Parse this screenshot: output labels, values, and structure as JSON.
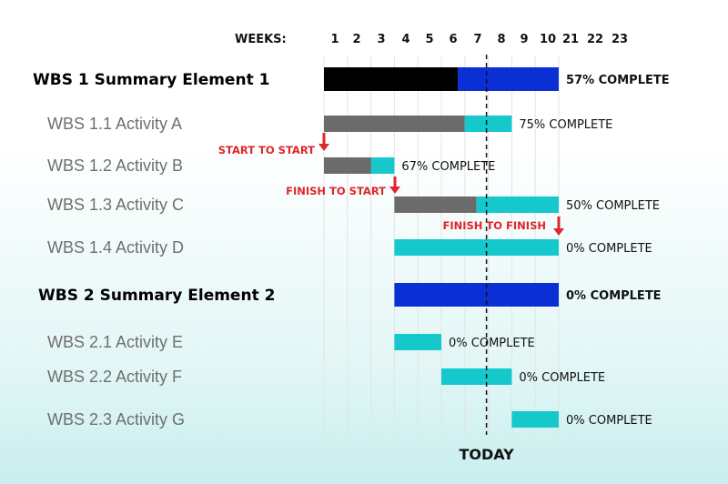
{
  "colors": {
    "summary_done": "#000000",
    "summary_remaining": "#0a2fd4",
    "summary_remaining_2": "#0a2fd4",
    "activity_done": "#6b6b6b",
    "activity_remaining": "#14c8cc",
    "dependency": "#e0262b",
    "today_line": "#111111",
    "gridline": "#e4e4e4"
  },
  "chart_data": {
    "type": "gantt",
    "header_label": "WEEKS:",
    "weeks": [
      "1",
      "2",
      "3",
      "4",
      "5",
      "6",
      "7",
      "8",
      "9",
      "10",
      "21",
      "22",
      "23"
    ],
    "today_week": 8,
    "today_label": "TODAY",
    "tasks": [
      {
        "label": "WBS 1 Summary Element 1",
        "summary": true,
        "start": 1,
        "end": 10,
        "percent_complete": 57,
        "percent_label": "57% COMPLETE"
      },
      {
        "label": "WBS 1.1 Activity A",
        "summary": false,
        "start": 1,
        "end": 8,
        "percent_complete": 75,
        "percent_label": "75% COMPLETE"
      },
      {
        "label": "WBS 1.2 Activity B",
        "summary": false,
        "start": 1,
        "end": 3,
        "percent_complete": 67,
        "percent_label": "67% COMPLETE"
      },
      {
        "label": "WBS 1.3 Activity C",
        "summary": false,
        "start": 4,
        "end": 10,
        "percent_complete": 50,
        "percent_label": "50% COMPLETE"
      },
      {
        "label": "WBS 1.4 Activity D",
        "summary": false,
        "start": 4,
        "end": 10,
        "percent_complete": 0,
        "percent_label": "0% COMPLETE"
      },
      {
        "label": "WBS 2 Summary Element 2",
        "summary": true,
        "start": 4,
        "end": 10,
        "percent_complete": 0,
        "percent_label": "0% COMPLETE"
      },
      {
        "label": "WBS 2.1 Activity E",
        "summary": false,
        "start": 4,
        "end": 5,
        "percent_complete": 0,
        "percent_label": "0% COMPLETE"
      },
      {
        "label": "WBS 2.2 Activity F",
        "summary": false,
        "start": 6,
        "end": 8,
        "percent_complete": 0,
        "percent_label": "0% COMPLETE"
      },
      {
        "label": "WBS 2.3 Activity G",
        "summary": false,
        "start": 9,
        "end": 10,
        "percent_complete": 0,
        "percent_label": "0% COMPLETE"
      }
    ],
    "dependencies": [
      {
        "type": "START TO START",
        "label": "START TO START",
        "from_task": 1,
        "to_task": 2
      },
      {
        "type": "FINISH TO START",
        "label": "FINISH TO START",
        "from_task": 2,
        "to_task": 3
      },
      {
        "type": "FINISH TO FINISH",
        "label": "FINISH TO FINISH",
        "from_task": 3,
        "to_task": 4
      }
    ]
  }
}
